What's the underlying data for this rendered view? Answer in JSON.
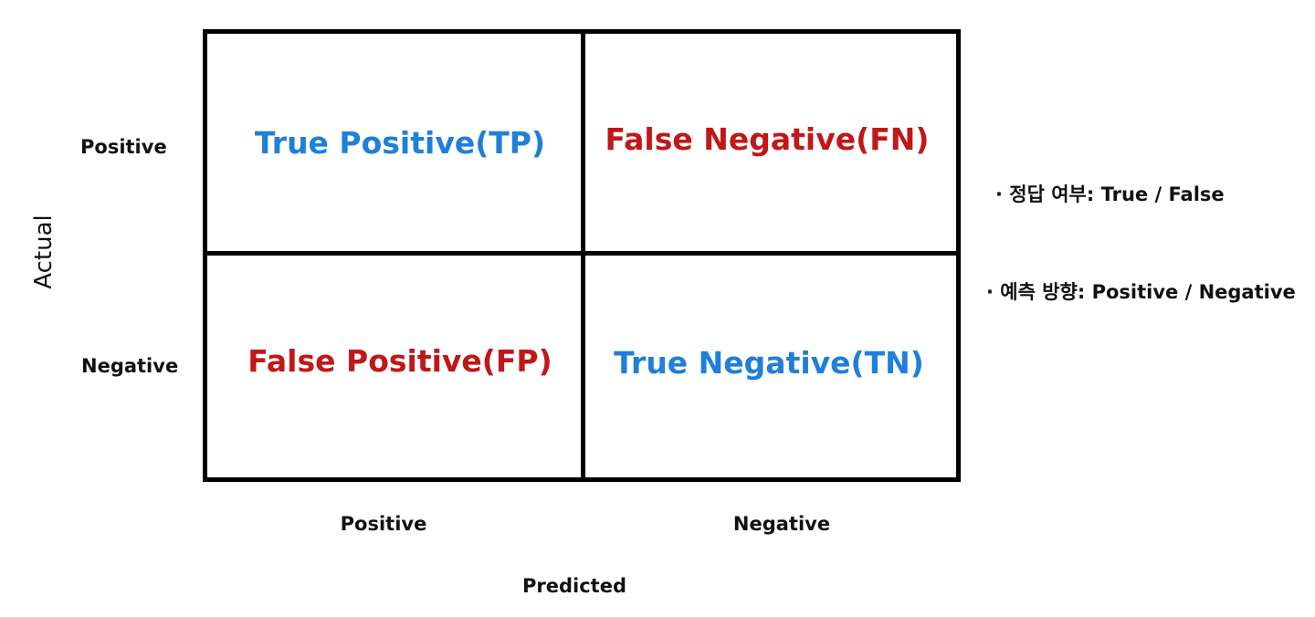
{
  "matrix": {
    "cells": {
      "tp": {
        "label": "True Positive(TP)",
        "color": "#1f7fd9"
      },
      "fn": {
        "label": "False Negative(FN)",
        "color": "#c01818"
      },
      "fp": {
        "label": "False Positive(FP)",
        "color": "#c01818"
      },
      "tn": {
        "label": "True Negative(TN)",
        "color": "#1f7fd9"
      }
    },
    "row_labels": [
      "Positive",
      "Negative"
    ],
    "column_labels": [
      "Positive",
      "Negative"
    ],
    "row_axis_title": "Actual",
    "column_axis_title": "Predicted"
  },
  "legend": {
    "items": [
      "· 정답 여부: True / False",
      "· 예측 방향: Positive / Negative"
    ]
  }
}
